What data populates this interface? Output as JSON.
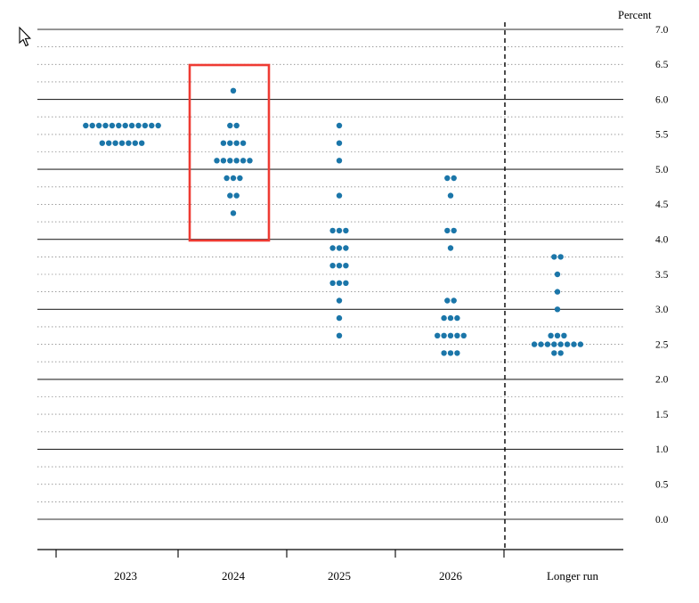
{
  "colors": {
    "dot": "#1b76a9",
    "highlight_box": "#ee3b33",
    "axis": "#000000",
    "grid_major": "#2b2b2b",
    "grid_minor": "#8a8a8a",
    "background": "#ffffff"
  },
  "chart_data": {
    "type": "scatter",
    "subtype": "fomc-dot-plot",
    "ylabel": "Percent",
    "ylim": [
      0.0,
      7.0
    ],
    "y_tick_step": 0.5,
    "grid_minor_step": 0.25,
    "grid": true,
    "legend_position": "none",
    "categories": [
      "2023",
      "2024",
      "2025",
      "2026",
      "Longer run"
    ],
    "series": [
      {
        "name": "2023",
        "dots": [
          [
            5.625,
            12
          ],
          [
            5.375,
            7
          ]
        ]
      },
      {
        "name": "2024",
        "dots": [
          [
            6.125,
            1
          ],
          [
            5.625,
            2
          ],
          [
            5.375,
            4
          ],
          [
            5.125,
            6
          ],
          [
            4.875,
            3
          ],
          [
            4.625,
            2
          ],
          [
            4.375,
            1
          ]
        ]
      },
      {
        "name": "2025",
        "dots": [
          [
            5.625,
            1
          ],
          [
            5.375,
            1
          ],
          [
            5.125,
            1
          ],
          [
            4.625,
            1
          ],
          [
            4.125,
            3
          ],
          [
            3.875,
            3
          ],
          [
            3.625,
            3
          ],
          [
            3.375,
            3
          ],
          [
            3.125,
            1
          ],
          [
            2.875,
            1
          ],
          [
            2.625,
            1
          ]
        ]
      },
      {
        "name": "2026",
        "dots": [
          [
            4.875,
            2
          ],
          [
            4.625,
            1
          ],
          [
            4.125,
            2
          ],
          [
            3.875,
            1
          ],
          [
            3.125,
            2
          ],
          [
            2.875,
            3
          ],
          [
            2.625,
            5
          ],
          [
            2.375,
            3
          ]
        ]
      },
      {
        "name": "Longer run",
        "dots": [
          [
            3.75,
            2
          ],
          [
            3.5,
            1
          ],
          [
            3.25,
            1
          ],
          [
            3.0,
            1
          ],
          [
            2.625,
            3
          ],
          [
            2.5,
            8
          ],
          [
            2.375,
            2
          ]
        ]
      }
    ],
    "highlighted_category": "2024",
    "separator_before_category": "Longer run"
  }
}
